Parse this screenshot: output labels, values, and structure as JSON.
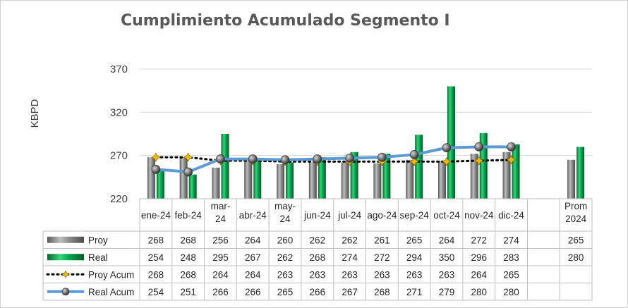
{
  "chart_data": {
    "type": "bar",
    "title": "Cumplimiento Acumulado Segmento I",
    "ylabel": "KBPD",
    "xlabel": "",
    "ylim": [
      220,
      370
    ],
    "yticks": [
      "220",
      "270",
      "320",
      "370"
    ],
    "grid": true,
    "categories": [
      "ene-24",
      "feb-24",
      "mar-24",
      "abr-24",
      "may-24",
      "jun-24",
      "jul-24",
      "ago-24",
      "sep-24",
      "oct-24",
      "nov-24",
      "dic-24",
      "",
      "Prom 2024"
    ],
    "category_lines": [
      [
        "ene-24"
      ],
      [
        "feb-24"
      ],
      [
        "mar-",
        "24"
      ],
      [
        "abr-24"
      ],
      [
        "may-",
        "24"
      ],
      [
        "jun-24"
      ],
      [
        "jul-24"
      ],
      [
        "ago-24"
      ],
      [
        "sep-24"
      ],
      [
        "oct-24"
      ],
      [
        "nov-24"
      ],
      [
        "dic-24"
      ],
      [
        ""
      ],
      [
        "Prom",
        "2024"
      ]
    ],
    "series": [
      {
        "name": "Proy",
        "kind": "bar",
        "color": "#7f7f7f",
        "values": [
          268,
          268,
          256,
          264,
          260,
          262,
          262,
          261,
          265,
          264,
          272,
          274,
          null,
          265
        ],
        "labels": [
          "268",
          "268",
          "256",
          "264",
          "260",
          "262",
          "262",
          "261",
          "265",
          "264",
          "272",
          "274",
          "",
          "265"
        ]
      },
      {
        "name": "Real",
        "kind": "bar",
        "color": "#00a651",
        "values": [
          254,
          248,
          295,
          267,
          262,
          268,
          274,
          272,
          294,
          350,
          296,
          283,
          null,
          280
        ],
        "labels": [
          "254",
          "248",
          "295",
          "267",
          "262",
          "268",
          "274",
          "272",
          "294",
          "350",
          "296",
          "283",
          "",
          "280"
        ]
      },
      {
        "name": "Proy Acum",
        "kind": "dotted-line",
        "color": "#000000",
        "marker_color": "#f5b800",
        "values": [
          268,
          268,
          264,
          264,
          263,
          263,
          263,
          263,
          263,
          263,
          264,
          265,
          null,
          null
        ],
        "labels": [
          "268",
          "268",
          "264",
          "264",
          "263",
          "263",
          "263",
          "263",
          "263",
          "263",
          "264",
          "265",
          "",
          ""
        ]
      },
      {
        "name": "Real Acum",
        "kind": "line",
        "color": "#5b9bd5",
        "marker_color": "#595959",
        "values": [
          254,
          251,
          266,
          266,
          265,
          266,
          267,
          268,
          271,
          279,
          280,
          280,
          null,
          null
        ],
        "labels": [
          "254",
          "251",
          "266",
          "266",
          "265",
          "266",
          "267",
          "268",
          "271",
          "279",
          "280",
          "280",
          "",
          ""
        ]
      }
    ]
  }
}
